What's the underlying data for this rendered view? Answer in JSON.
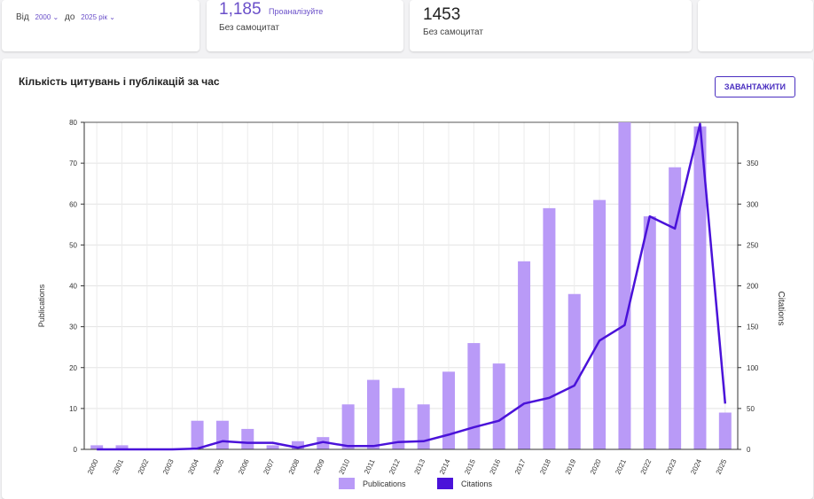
{
  "filters": {
    "from_label": "Від",
    "from_value": "2000",
    "to_label": "до",
    "to_value": "2025 рік"
  },
  "stats": [
    {
      "value": "1,185",
      "link": "Проаналізуйте",
      "caption": "Без самоцитат"
    },
    {
      "value": "1453",
      "caption": "Без самоцитат"
    }
  ],
  "section": {
    "title": "Кількість цитувань і публікацій за час",
    "download_label": "ЗАВАНТАЖИТИ"
  },
  "colors": {
    "publications": "#b99af7",
    "citations": "#4a12d9"
  },
  "chart_data": {
    "type": "bar+line",
    "categories": [
      "2000",
      "2001",
      "2002",
      "2003",
      "2004",
      "2005",
      "2006",
      "2007",
      "2008",
      "2009",
      "2010",
      "2011",
      "2012",
      "2013",
      "2014",
      "2015",
      "2016",
      "2017",
      "2018",
      "2019",
      "2020",
      "2021",
      "2022",
      "2023",
      "2024",
      "2025"
    ],
    "series": [
      {
        "name": "Publications",
        "type": "bar",
        "axis": "left",
        "values": [
          1,
          1,
          0,
          0,
          7,
          7,
          5,
          1,
          2,
          3,
          11,
          17,
          15,
          11,
          19,
          26,
          21,
          46,
          59,
          38,
          61,
          80,
          57,
          69,
          79,
          9
        ]
      },
      {
        "name": "Citations",
        "type": "line",
        "axis": "right",
        "values": [
          0,
          0,
          0,
          0,
          1,
          10,
          8,
          8,
          2,
          9,
          4,
          4,
          9,
          10,
          18,
          27,
          35,
          56,
          63,
          78,
          133,
          152,
          285,
          270,
          398,
          56
        ]
      }
    ],
    "ylabel": "Publications",
    "y2label": "Citations",
    "ylim": [
      0,
      80
    ],
    "y2lim": [
      0,
      400
    ],
    "yticks": [
      0,
      10,
      20,
      30,
      40,
      50,
      60,
      70,
      80
    ],
    "y2ticks": [
      0,
      50,
      100,
      150,
      200,
      250,
      300,
      350
    ],
    "grid": true,
    "legend": "bottom"
  }
}
